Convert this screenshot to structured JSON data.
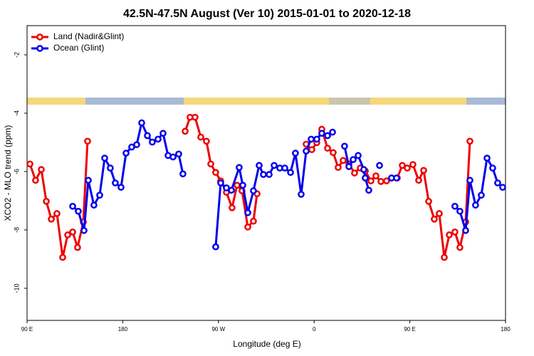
{
  "chart_data": {
    "type": "line",
    "title": "42.5N-47.5N August (Ver 10)   2015-01-01 to 2020-12-18",
    "x_label": "Longitude (deg E)",
    "y_label": "XCO2 - MLO trend (ppm)",
    "xlim": [
      90,
      540
    ],
    "ylim": [
      -11.1,
      -1.0
    ],
    "xticks": [
      {
        "value": 90,
        "label": "90 E"
      },
      180,
      {
        "value": 270,
        "label": "90 W"
      },
      {
        "value": 360,
        "label": "0"
      },
      {
        "value": 450,
        "label": "90 E"
      },
      {
        "value": 540,
        "label": "180"
      }
    ],
    "yticks": [
      -2,
      -4,
      -6,
      -8,
      -10
    ],
    "grid": false,
    "legend": "top-left",
    "series": [
      {
        "name": "Land (Nadir&Glint)",
        "color": "#ee0000",
        "x": [
          92.7,
          98.0,
          103.4,
          108.1,
          112.8,
          118.1,
          123.5,
          128.2,
          132.9,
          137.5,
          142.9,
          146.9,
          null,
          238.7,
          243.3,
          248.0,
          253.4,
          258.7,
          262.8,
          267.4,
          272.1,
          277.5,
          282.8,
          287.5,
          292.2,
          297.6,
          302.9,
          306.3,
          null,
          352.5,
          357.8,
          362.5,
          367.2,
          372.6,
          377.9,
          382.6,
          387.3,
          392.7,
          398.0,
          403.4,
          408.1,
          413.4,
          418.1,
          422.8,
          428.1,
          432.8,
          438.2,
          442.9,
          447.6,
          452.9,
          458.3,
          463.0,
          467.7,
          473.0,
          477.7,
          482.4,
          487.1,
          492.4,
          497.1,
          502.5,
          506.5
        ],
        "values": [
          -5.74,
          -6.3,
          -5.93,
          -7.02,
          -7.63,
          -7.44,
          -8.94,
          -8.17,
          -8.07,
          -8.6,
          -7.73,
          -4.96,
          null,
          -4.62,
          -4.14,
          -4.14,
          -4.82,
          -4.96,
          -5.74,
          -6.03,
          -6.32,
          -6.71,
          -7.24,
          -6.47,
          -6.66,
          -7.9,
          -7.7,
          -6.76,
          null,
          -5.06,
          -5.25,
          -5.01,
          -4.55,
          -5.2,
          -5.35,
          -5.86,
          -5.62,
          -5.74,
          -6.05,
          -5.88,
          -5.98,
          -6.32,
          -6.15,
          -6.34,
          -6.32,
          -6.22,
          -6.22,
          -5.79,
          -5.88,
          -5.76,
          -6.3,
          -5.96,
          -7.02,
          -7.63,
          -7.44,
          -8.94,
          -8.17,
          -8.07,
          -8.6,
          -7.73,
          -4.96
        ]
      },
      {
        "name": "Ocean (Glint)",
        "color": "#0000ee",
        "x": [
          132.9,
          138.2,
          143.6,
          147.6,
          152.9,
          158.3,
          163.0,
          168.3,
          173.0,
          178.4,
          183.1,
          188.4,
          193.1,
          197.8,
          203.2,
          207.8,
          213.2,
          217.9,
          222.6,
          227.3,
          232.6,
          236.6,
          null,
          267.4,
          272.1,
          277.5,
          282.2,
          289.5,
          292.9,
          297.6,
          302.9,
          308.3,
          312.3,
          317.7,
          322.4,
          327.7,
          332.4,
          337.8,
          342.4,
          347.8,
          352.5,
          357.2,
          362.5,
          367.2,
          372.6,
          377.3,
          null,
          388.6,
          392.7,
          396.7,
          401.4,
          406.7,
          408.1,
          411.4,
          null,
          421.5,
          null,
          432.8,
          437.5,
          null,
          492.4,
          497.1,
          502.5,
          506.5,
          511.8,
          517.2,
          522.6,
          527.9,
          532.6,
          537.3
        ],
        "values": [
          -7.19,
          -7.36,
          -8.02,
          -6.3,
          -7.15,
          -6.81,
          -5.54,
          -5.88,
          -6.39,
          -6.54,
          -5.37,
          -5.16,
          -5.08,
          -4.33,
          -4.77,
          -4.99,
          -4.89,
          -4.69,
          -5.45,
          -5.5,
          -5.4,
          -6.08,
          null,
          -8.58,
          -6.39,
          -6.56,
          -6.64,
          -5.86,
          -6.47,
          -7.41,
          -6.66,
          -5.79,
          -6.1,
          -6.1,
          -5.79,
          -5.88,
          -5.88,
          -6.03,
          -5.37,
          -6.78,
          -5.3,
          -4.89,
          -4.89,
          -4.69,
          -4.77,
          -4.65,
          null,
          -5.13,
          -5.83,
          -5.59,
          -5.45,
          -5.93,
          -6.22,
          -6.64,
          null,
          -5.79,
          null,
          -6.22,
          -6.22,
          null,
          -7.19,
          -7.36,
          -8.02,
          -6.3,
          -7.15,
          -6.81,
          -5.54,
          -5.88,
          -6.39,
          -6.54
        ]
      }
    ]
  }
}
